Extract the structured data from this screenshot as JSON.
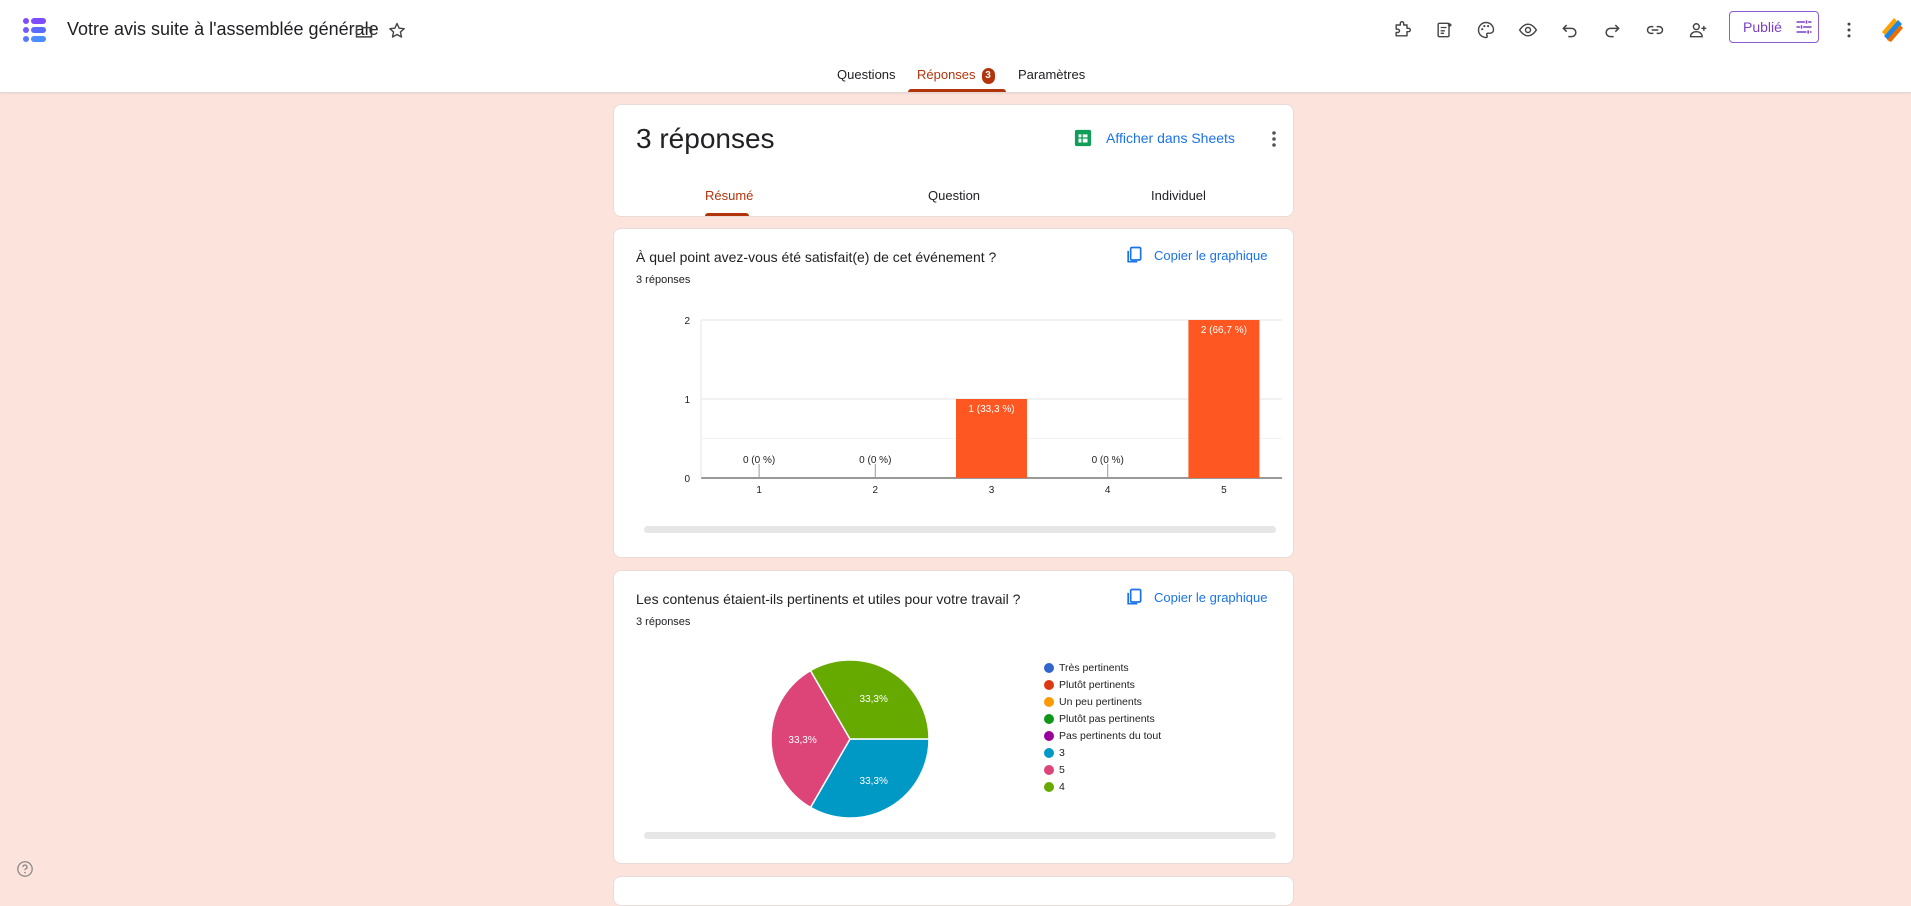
{
  "header": {
    "title": "Votre avis suite à l'assemblée générale",
    "publish_label": "Publié"
  },
  "tabs": [
    {
      "label": "Questions"
    },
    {
      "label": "Réponses",
      "badge": "3"
    },
    {
      "label": "Paramètres"
    }
  ],
  "summary": {
    "title": "3 réponses",
    "sheets_label": "Afficher dans Sheets",
    "subtabs": [
      "Résumé",
      "Question",
      "Individuel"
    ]
  },
  "questions": [
    {
      "title": "À quel point avez-vous été satisfait(e) de cet événement ?",
      "count": "3 réponses",
      "copy_label": "Copier le graphique"
    },
    {
      "title": "Les contenus étaient-ils pertinents et utiles pour votre travail ?",
      "count": "3 réponses",
      "copy_label": "Copier le graphique"
    }
  ],
  "colors": {
    "accent": "#b3340b",
    "bar": "#ff5722",
    "link": "#1a73e8",
    "background": "#fce4dc"
  },
  "chart_data": [
    {
      "type": "bar",
      "categories": [
        "1",
        "2",
        "3",
        "4",
        "5"
      ],
      "values": [
        0,
        0,
        1,
        0,
        2
      ],
      "data_labels": [
        "0 (0 %)",
        "0 (0 %)",
        "1 (33,3 %)",
        "0 (0 %)",
        "2 (66,7 %)"
      ],
      "yticks": [
        "0",
        "1",
        "2"
      ],
      "ylim": [
        0,
        2
      ],
      "grid": true
    },
    {
      "type": "pie",
      "legend": [
        "Très pertinents",
        "Plutôt pertinents",
        "Un peu pertinents",
        "Plutôt pas pertinents",
        "Pas pertinents du tout",
        "3",
        "5",
        "4"
      ],
      "legend_colors": [
        "#3366cc",
        "#dc3912",
        "#ff9900",
        "#109618",
        "#990099",
        "#0099c6",
        "#dd4477",
        "#66aa00"
      ],
      "slices": [
        {
          "label": "3",
          "value": 33.3,
          "text": "33,3%",
          "color": "#0099c6"
        },
        {
          "label": "5",
          "value": 33.3,
          "text": "33,3%",
          "color": "#dd4477"
        },
        {
          "label": "4",
          "value": 33.3,
          "text": "33,3%",
          "color": "#66aa00"
        }
      ],
      "legend_position": "right"
    }
  ]
}
